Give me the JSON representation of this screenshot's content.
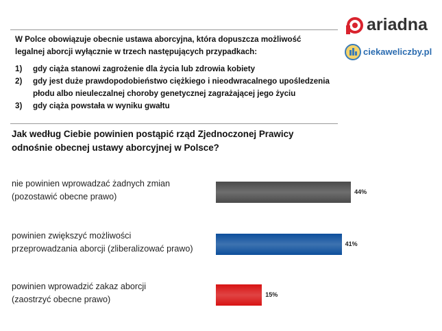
{
  "header": {
    "brand": "ariadna",
    "site": "ciekaweliczby.pl"
  },
  "intro": {
    "lines": [
      "W Polce obowiązuje obecnie ustawa aborcyjna, która dopuszcza możliwość",
      "legalnej aborcji wyłącznie w trzech następujących przypadkach:"
    ],
    "items": [
      {
        "marker": "1)",
        "lines": [
          "gdy ciąża stanowi zagrożenie dla życia lub zdrowia kobiety"
        ]
      },
      {
        "marker": "2)",
        "lines": [
          "gdy jest duże prawdopodobieństwo ciężkiego i nieodwracalnego upośledzenia",
          "płodu albo nieuleczalnej choroby genetycznej zagrażającej jego życiu"
        ]
      },
      {
        "marker": "3)",
        "lines": [
          "gdy ciąża powstała w wyniku gwałtu"
        ]
      }
    ]
  },
  "chart_data": {
    "type": "bar",
    "orientation": "horizontal",
    "title": [
      "Jak według Ciebie powinien postąpić rząd Zjednoczonej Prawicy",
      "odnośnie obecnej ustawy aborcyjnej w Polsce?"
    ],
    "categories": [
      [
        "nie powinien wprowadzać żadnych zmian",
        "(pozostawić obecne prawo)"
      ],
      [
        "powinien zwiększyć możliwości",
        "przeprowadzania aborcji (zliberalizować  prawo)"
      ],
      [
        "powinien wprowadzić  zakaz aborcji",
        "(zaostrzyć obecne prawo)"
      ]
    ],
    "values": [
      44,
      41,
      15
    ],
    "value_labels": [
      "44%",
      "41%",
      "15%"
    ],
    "colors": [
      "#4a4a4a",
      "#0d4f9c",
      "#d81414"
    ]
  }
}
